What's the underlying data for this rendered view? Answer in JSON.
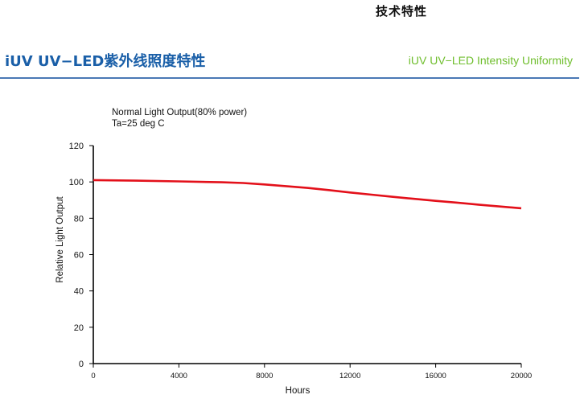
{
  "header": {
    "top_title": "技术特性",
    "title_cn": "iUV UV−LED紫外线照度特性",
    "title_en": "iUV UV−LED Intensity Uniformity"
  },
  "chart_data": {
    "type": "line",
    "annotation": [
      "Normal Light Output(80% power)",
      "Ta=25 deg C"
    ],
    "xlabel": "Hours",
    "ylabel": "Relative Light Output",
    "xlim": [
      0,
      20000
    ],
    "ylim": [
      0,
      120
    ],
    "xticks": [
      0,
      4000,
      8000,
      12000,
      16000,
      20000
    ],
    "yticks": [
      0,
      20,
      40,
      60,
      80,
      100,
      120
    ],
    "grid": false,
    "series": [
      {
        "color": "#e3101a",
        "x": [
          0,
          2000,
          4000,
          6000,
          7000,
          8000,
          9000,
          10000,
          11000,
          12000,
          13000,
          14000,
          15000,
          16000,
          17000,
          18000,
          19000,
          20000
        ],
        "y": [
          101,
          100.7,
          100.3,
          99.8,
          99.4,
          98.6,
          97.7,
          96.7,
          95.5,
          94.2,
          93.0,
          91.8,
          90.7,
          89.6,
          88.6,
          87.5,
          86.5,
          85.5
        ]
      }
    ]
  }
}
